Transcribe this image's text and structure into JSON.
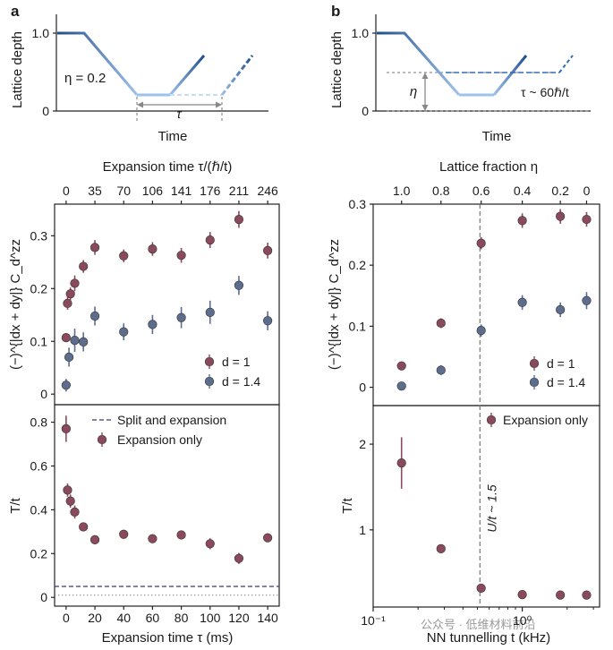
{
  "figure": {
    "panel_a": "a",
    "panel_b": "b",
    "watermark": "公众号 · 低维材料前沿"
  },
  "colors": {
    "d1": "#8a4a5c",
    "d14": "#5d6d8e",
    "schematic_dark": "#1f4e8c",
    "schematic_light": "#9ec1ea",
    "dashed_line": "#3a3a6e",
    "guide": "#777777"
  },
  "schematics": {
    "a": {
      "ylabel": "Lattice depth",
      "xlabel": "Time",
      "yticks": [
        "1.0",
        "0"
      ],
      "eta_label": "η = 0.2",
      "tau_label": "τ"
    },
    "b": {
      "ylabel": "Lattice depth",
      "xlabel": "Time",
      "yticks": [
        "1.0",
        "0"
      ],
      "eta_label": "η",
      "tau_label": "τ ~ 60ℏ/t"
    }
  },
  "chart_data": [
    {
      "id": "a-upper",
      "type": "scatter",
      "xlabel_top": "Expansion time τ/(ℏ/t)",
      "top_ticks": [
        "0",
        "35",
        "70",
        "106",
        "141",
        "176",
        "211",
        "246"
      ],
      "top_tick_positions_ms": [
        0,
        20,
        40,
        60,
        80,
        100,
        120,
        140
      ],
      "ylabel": "(−)^{|dx + dy|} C_d^zz",
      "yticks": [
        "0",
        "0.1",
        "0.2",
        "0.3"
      ],
      "xlim": [
        -8,
        148
      ],
      "ylim": [
        -0.02,
        0.36
      ],
      "legend": "bottom-right",
      "series": [
        {
          "name": "d = 1",
          "color": "d1",
          "x": [
            0,
            1,
            3,
            6,
            12,
            20,
            40,
            60,
            80,
            100,
            120,
            140
          ],
          "y": [
            0.107,
            0.172,
            0.19,
            0.21,
            0.242,
            0.278,
            0.262,
            0.275,
            0.263,
            0.292,
            0.331,
            0.272
          ],
          "err": [
            0.008,
            0.012,
            0.012,
            0.015,
            0.012,
            0.014,
            0.012,
            0.013,
            0.014,
            0.015,
            0.016,
            0.015
          ]
        },
        {
          "name": "d = 1.4",
          "color": "d14",
          "x": [
            0,
            2,
            6,
            12,
            20,
            40,
            60,
            80,
            100,
            120,
            140
          ],
          "y": [
            0.017,
            0.07,
            0.102,
            0.099,
            0.148,
            0.118,
            0.132,
            0.145,
            0.155,
            0.206,
            0.139
          ],
          "err": [
            0.012,
            0.018,
            0.022,
            0.018,
            0.018,
            0.016,
            0.018,
            0.02,
            0.022,
            0.018,
            0.018
          ]
        }
      ]
    },
    {
      "id": "a-lower",
      "type": "scatter",
      "xlabel": "Expansion time τ (ms)",
      "ylabel": "T/t",
      "xticks": [
        "0",
        "20",
        "40",
        "60",
        "80",
        "100",
        "120",
        "140"
      ],
      "xtick_values": [
        0,
        20,
        40,
        60,
        80,
        100,
        120,
        140
      ],
      "yticks": [
        "0",
        "0.2",
        "0.4",
        "0.6",
        "0.8"
      ],
      "xlim": [
        -8,
        148
      ],
      "ylim": [
        -0.04,
        0.88
      ],
      "legend": "top-right",
      "reference_line": {
        "name": "Split and expansion",
        "y": 0.05
      },
      "dotted_line": {
        "y": 0.01
      },
      "series": [
        {
          "name": "Expansion only",
          "color": "d1",
          "x": [
            0,
            1,
            3,
            6,
            12,
            20,
            40,
            60,
            80,
            100,
            120,
            140
          ],
          "y": [
            0.77,
            0.49,
            0.44,
            0.39,
            0.322,
            0.263,
            0.288,
            0.268,
            0.285,
            0.245,
            0.178,
            0.272
          ],
          "err": [
            0.06,
            0.03,
            0.03,
            0.03,
            0.02,
            0.02,
            0.02,
            0.02,
            0.02,
            0.025,
            0.025,
            0.02
          ]
        }
      ]
    },
    {
      "id": "b-upper",
      "type": "scatter",
      "xlabel_top": "Lattice fraction η",
      "top_ticks": [
        "1.0",
        "0.8",
        "0.6",
        "0.4",
        "0.2",
        "0"
      ],
      "ylabel": "(−)^{|dx + dy|} C_d^zz",
      "yticks": [
        "0",
        "0.1",
        "0.2",
        "0.3"
      ],
      "xscale": "log",
      "xlim": [
        0.1,
        3.3
      ],
      "ylim": [
        -0.03,
        0.3
      ],
      "legend": "bottom-right",
      "vline": 0.52,
      "series": [
        {
          "name": "d = 1",
          "color": "d1",
          "x": [
            0.155,
            0.285,
            0.53,
            1.0,
            1.8,
            2.7
          ],
          "y": [
            0.035,
            0.105,
            0.236,
            0.273,
            0.28,
            0.275
          ],
          "err": [
            0.006,
            0.008,
            0.01,
            0.012,
            0.012,
            0.012
          ]
        },
        {
          "name": "d = 1.4",
          "color": "d14",
          "x": [
            0.155,
            0.285,
            0.53,
            1.0,
            1.8,
            2.7
          ],
          "y": [
            0.002,
            0.028,
            0.093,
            0.139,
            0.127,
            0.142
          ],
          "err": [
            0.006,
            0.008,
            0.01,
            0.012,
            0.012,
            0.014
          ]
        }
      ]
    },
    {
      "id": "b-lower",
      "type": "scatter",
      "xlabel": "NN tunnelling t (kHz)",
      "ylabel": "T/t",
      "xticks": [
        "10⁻¹",
        "10⁰"
      ],
      "xtick_values": [
        0.1,
        1.0
      ],
      "yticks": [
        "1",
        "2"
      ],
      "ytick_values": [
        1,
        2
      ],
      "xscale": "log",
      "xlim": [
        0.1,
        3.3
      ],
      "ylim": [
        0.1,
        2.45
      ],
      "legend": "top-right",
      "vline": 0.52,
      "vline_label": "U/t ~ 1.5",
      "series": [
        {
          "name": "Expansion only",
          "color": "d1",
          "x": [
            0.155,
            0.285,
            0.53,
            1.0,
            1.8,
            2.7
          ],
          "y": [
            1.78,
            0.78,
            0.32,
            0.245,
            0.24,
            0.24
          ],
          "err": [
            0.3,
            0.03,
            0.03,
            0.02,
            0.02,
            0.02
          ]
        }
      ]
    }
  ]
}
